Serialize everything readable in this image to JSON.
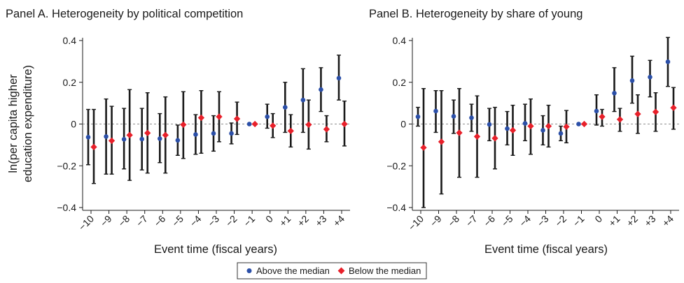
{
  "chart_data": [
    {
      "type": "scatter",
      "title": "Panel A. Heterogeneity by political competition",
      "xlabel": "Event time (fiscal years)",
      "ylabel_lines": [
        "ln(per capita higher",
        "education expenditure)"
      ],
      "categories": [
        "−10",
        "−9",
        "−8",
        "−7",
        "−6",
        "−5",
        "−4",
        "−3",
        "−2",
        "−1",
        "0",
        "+1",
        "+2",
        "+3",
        "+4"
      ],
      "x": [
        -10,
        -9,
        -8,
        -7,
        -6,
        -5,
        -4,
        -3,
        -2,
        -1,
        0,
        1,
        2,
        3,
        4
      ],
      "yticks": [
        "0.4",
        "0.2",
        "0",
        "−0.2",
        "−0.4"
      ],
      "ylim": [
        -0.4,
        0.4
      ],
      "reference_line": 0,
      "series": [
        {
          "name": "Above the median",
          "color": "#2b4fa8",
          "marker": "circle",
          "values": [
            -0.063,
            -0.06,
            -0.073,
            -0.072,
            -0.07,
            -0.078,
            -0.05,
            -0.045,
            -0.045,
            0,
            0.035,
            0.08,
            0.115,
            0.165,
            0.22
          ],
          "ci_low": [
            -0.195,
            -0.24,
            -0.215,
            -0.22,
            -0.185,
            -0.15,
            -0.145,
            -0.13,
            -0.095,
            0,
            -0.02,
            -0.04,
            -0.04,
            0.06,
            0.115
          ],
          "ci_high": [
            0.07,
            0.12,
            0.075,
            0.075,
            0.05,
            -0.005,
            0.045,
            0.04,
            0.005,
            0,
            0.095,
            0.2,
            0.265,
            0.27,
            0.33
          ]
        },
        {
          "name": "Below the median",
          "color": "#e8202a",
          "marker": "diamond",
          "values": [
            -0.11,
            -0.08,
            -0.053,
            -0.043,
            -0.053,
            -0.003,
            0.03,
            0.035,
            0.025,
            0,
            -0.008,
            -0.033,
            -0.003,
            -0.025,
            0
          ],
          "ci_low": [
            -0.285,
            -0.24,
            -0.27,
            -0.235,
            -0.235,
            -0.165,
            -0.14,
            -0.085,
            -0.05,
            0,
            -0.065,
            -0.11,
            -0.12,
            -0.085,
            -0.105
          ],
          "ci_high": [
            0.07,
            0.085,
            0.165,
            0.15,
            0.13,
            0.155,
            0.16,
            0.155,
            0.105,
            0,
            0.05,
            0.045,
            0.115,
            0.04,
            0.11
          ]
        }
      ]
    },
    {
      "type": "scatter",
      "title": "Panel B. Heterogeneity by share of young",
      "xlabel": "Event time (fiscal years)",
      "categories": [
        "−10",
        "−9",
        "−8",
        "−7",
        "−6",
        "−5",
        "−4",
        "−3",
        "−2",
        "−1",
        "0",
        "+1",
        "+2",
        "+3",
        "+4"
      ],
      "x": [
        -10,
        -9,
        -8,
        -7,
        -6,
        -5,
        -4,
        -3,
        -2,
        -1,
        0,
        1,
        2,
        3,
        4
      ],
      "yticks": [
        "0.4",
        "0.2",
        "0",
        "−0.2",
        "−0.4"
      ],
      "ylim": [
        -0.4,
        0.4
      ],
      "reference_line": 0,
      "series": [
        {
          "name": "Above the median",
          "color": "#2b4fa8",
          "marker": "circle",
          "values": [
            0.035,
            0.062,
            0.037,
            0.03,
            -0.002,
            -0.022,
            0.003,
            -0.03,
            -0.045,
            0,
            0.062,
            0.148,
            0.208,
            0.225,
            0.298
          ],
          "ci_low": [
            -0.01,
            -0.04,
            -0.045,
            -0.035,
            -0.08,
            -0.1,
            -0.08,
            -0.1,
            -0.08,
            0,
            -0.005,
            0.06,
            0.1,
            0.13,
            0.18
          ],
          "ci_high": [
            0.08,
            0.16,
            0.115,
            0.095,
            0.075,
            0.06,
            0.095,
            0.04,
            -0.01,
            0,
            0.14,
            0.27,
            0.325,
            0.305,
            0.415
          ]
        },
        {
          "name": "Below the median",
          "color": "#e8202a",
          "marker": "diamond",
          "values": [
            -0.113,
            -0.085,
            -0.042,
            -0.06,
            -0.068,
            -0.03,
            -0.01,
            -0.01,
            -0.013,
            0,
            0.035,
            0.022,
            0.048,
            0.058,
            0.078
          ],
          "ci_low": [
            -0.4,
            -0.335,
            -0.255,
            -0.255,
            -0.215,
            -0.15,
            -0.145,
            -0.11,
            -0.09,
            0,
            -0.01,
            -0.035,
            -0.045,
            -0.035,
            -0.025
          ],
          "ci_high": [
            0.17,
            0.16,
            0.17,
            0.135,
            0.08,
            0.09,
            0.12,
            0.09,
            0.065,
            0,
            0.07,
            0.075,
            0.14,
            0.15,
            0.175
          ]
        }
      ]
    }
  ],
  "legend": {
    "placement": "bottom-center",
    "items": [
      {
        "label": "Above the median",
        "color": "#2b4fa8",
        "marker": "circle"
      },
      {
        "label": "Below the median",
        "color": "#e8202a",
        "marker": "diamond"
      }
    ]
  }
}
